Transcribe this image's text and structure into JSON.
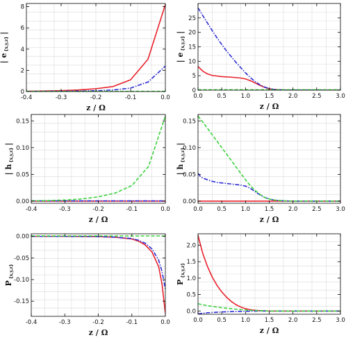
{
  "colors": {
    "e_x": "#e8202a",
    "e_y": "#2a2ad4",
    "e_z": "#39d13a",
    "frame": "#000000",
    "grid": "#d9d9d9",
    "background": "#ffffff"
  },
  "chart_data": [
    {
      "id": "panel-a",
      "type": "line",
      "title": "",
      "xlabel": "z / Ω",
      "ylabel_main": "| e",
      "ylabel_sub": "{x,y,z}",
      "ylabel_end": "|",
      "xlim": [
        -0.4,
        0.0
      ],
      "ylim": [
        0,
        8.3
      ],
      "xticks": [
        -0.4,
        -0.3,
        -0.2,
        -0.1,
        0.0
      ],
      "xtick_labels": [
        "-0.4",
        "-0.3",
        "-0.2",
        "-0.1",
        "0.0"
      ],
      "yticks": [
        0,
        2,
        4,
        6,
        8
      ],
      "ytick_labels": [
        "0",
        "2",
        "4",
        "6",
        "8"
      ],
      "grid": true,
      "series": [
        {
          "style": "solid",
          "color_key": "e_x",
          "x": [
            -0.4,
            -0.35,
            -0.3,
            -0.25,
            -0.2,
            -0.15,
            -0.1,
            -0.05,
            0.0
          ],
          "y": [
            0.03,
            0.05,
            0.09,
            0.15,
            0.27,
            0.48,
            1.11,
            3.05,
            8.2
          ]
        },
        {
          "style": "dashdot",
          "color_key": "e_y",
          "x": [
            -0.4,
            -0.35,
            -0.3,
            -0.25,
            -0.2,
            -0.15,
            -0.1,
            -0.05,
            0.0
          ],
          "y": [
            0.01,
            0.02,
            0.03,
            0.05,
            0.08,
            0.15,
            0.33,
            0.9,
            2.4
          ]
        },
        {
          "style": "dashed",
          "color_key": "e_z",
          "x": [
            -0.4,
            0.0
          ],
          "y": [
            0.02,
            0.02
          ]
        }
      ]
    },
    {
      "id": "panel-b",
      "type": "line",
      "title": "",
      "xlabel": "z / Ω",
      "ylabel_main": "| e",
      "ylabel_sub": "{x,y,z}",
      "ylabel_end": "|",
      "xlim": [
        0.0,
        3.0
      ],
      "ylim": [
        0,
        30
      ],
      "xticks": [
        0.0,
        0.5,
        1.0,
        1.5,
        2.0,
        2.5,
        3.0
      ],
      "xtick_labels": [
        "0.0",
        "0.5",
        "1.0",
        "1.5",
        "2.0",
        "2.5",
        "3.0"
      ],
      "yticks": [
        0,
        5,
        10,
        15,
        20,
        25
      ],
      "ytick_labels": [
        "0",
        "5",
        "10",
        "15",
        "20",
        "25"
      ],
      "grid": true,
      "series": [
        {
          "style": "solid",
          "color_key": "e_x",
          "x": [
            0.0,
            0.1,
            0.2,
            0.3,
            0.5,
            0.7,
            0.9,
            1.0,
            1.1,
            1.2,
            1.3,
            1.4,
            1.5,
            1.6,
            1.8,
            2.0,
            2.5,
            3.0
          ],
          "y": [
            8.2,
            6.6,
            5.6,
            5.1,
            4.7,
            4.5,
            4.2,
            3.9,
            3.3,
            2.5,
            1.7,
            1.0,
            0.5,
            0.25,
            0.06,
            0.02,
            0.0,
            0.0
          ]
        },
        {
          "style": "dashdot",
          "color_key": "e_y",
          "x": [
            0.0,
            0.1,
            0.2,
            0.3,
            0.4,
            0.5,
            0.6,
            0.7,
            0.8,
            0.9,
            1.0,
            1.1,
            1.2,
            1.3,
            1.4,
            1.5,
            1.6,
            1.8,
            2.0,
            2.5,
            3.0
          ],
          "y": [
            28.5,
            25.8,
            23.2,
            20.6,
            18.1,
            15.8,
            13.6,
            11.6,
            9.6,
            7.8,
            6.0,
            4.4,
            3.0,
            1.9,
            1.1,
            0.55,
            0.25,
            0.06,
            0.02,
            0.0,
            0.0
          ]
        },
        {
          "style": "dashed",
          "color_key": "e_z",
          "x": [
            0.0,
            3.0
          ],
          "y": [
            0.15,
            0.15
          ]
        }
      ]
    },
    {
      "id": "panel-c",
      "type": "line",
      "title": "",
      "xlabel": "z / Ω",
      "ylabel_main": "| h",
      "ylabel_sub": "{x,y,z}",
      "ylabel_end": "|",
      "xlim": [
        -0.4,
        0.0
      ],
      "ylim": [
        -0.004,
        0.162
      ],
      "xticks": [
        -0.4,
        -0.3,
        -0.2,
        -0.1,
        0.0
      ],
      "xtick_labels": [
        "-0.4",
        "-0.3",
        "-0.2",
        "-0.1",
        "0.0"
      ],
      "yticks": [
        0.0,
        0.05,
        0.1,
        0.15
      ],
      "ytick_labels": [
        "0.00",
        "0.05",
        "0.10",
        "0.15"
      ],
      "grid": true,
      "series": [
        {
          "style": "solid",
          "color_key": "e_x",
          "x": [
            -0.4,
            0.0
          ],
          "y": [
            0.0,
            0.0
          ]
        },
        {
          "style": "dashdot",
          "color_key": "e_y",
          "x": [
            -0.4,
            0.0
          ],
          "y": [
            0.0005,
            0.0005
          ]
        },
        {
          "style": "dashed",
          "color_key": "e_z",
          "x": [
            -0.4,
            -0.35,
            -0.3,
            -0.25,
            -0.2,
            -0.15,
            -0.1,
            -0.05,
            0.0
          ],
          "y": [
            0.0005,
            0.001,
            0.002,
            0.004,
            0.008,
            0.015,
            0.029,
            0.065,
            0.159
          ]
        }
      ]
    },
    {
      "id": "panel-d",
      "type": "line",
      "title": "",
      "xlabel": "z / Ω",
      "ylabel_main": "| h",
      "ylabel_sub": "{x,y,z}",
      "ylabel_end": "|",
      "xlim": [
        0.0,
        3.0
      ],
      "ylim": [
        -0.004,
        0.162
      ],
      "xticks": [
        0.0,
        0.5,
        1.0,
        1.5,
        2.0,
        2.5,
        3.0
      ],
      "xtick_labels": [
        "0.0",
        "0.5",
        "1.0",
        "1.5",
        "2.0",
        "2.5",
        "3.0"
      ],
      "yticks": [
        0.0,
        0.05,
        0.1,
        0.15
      ],
      "ytick_labels": [
        "0.00",
        "0.05",
        "0.10",
        "0.15"
      ],
      "grid": true,
      "series": [
        {
          "style": "solid",
          "color_key": "e_x",
          "x": [
            0.0,
            3.0
          ],
          "y": [
            0.0,
            0.0
          ]
        },
        {
          "style": "dashdot",
          "color_key": "e_y",
          "x": [
            0.0,
            0.05,
            0.1,
            0.2,
            0.3,
            0.4,
            0.5,
            0.6,
            0.7,
            0.8,
            0.9,
            1.0,
            1.1,
            1.2,
            1.3,
            1.4,
            1.5,
            1.6,
            1.8,
            2.0,
            2.5,
            3.0
          ],
          "y": [
            0.052,
            0.046,
            0.043,
            0.04,
            0.037,
            0.035,
            0.034,
            0.033,
            0.032,
            0.031,
            0.03,
            0.028,
            0.024,
            0.018,
            0.012,
            0.007,
            0.004,
            0.002,
            0.0005,
            0.0,
            0.0,
            0.0
          ]
        },
        {
          "style": "dashed",
          "color_key": "e_z",
          "x": [
            0.0,
            0.1,
            0.2,
            0.3,
            0.4,
            0.5,
            0.6,
            0.7,
            0.8,
            0.9,
            1.0,
            1.1,
            1.2,
            1.3,
            1.4,
            1.5,
            1.6,
            1.8,
            2.0,
            2.5,
            3.0
          ],
          "y": [
            0.159,
            0.148,
            0.136,
            0.124,
            0.112,
            0.1,
            0.088,
            0.076,
            0.064,
            0.052,
            0.04,
            0.029,
            0.02,
            0.013,
            0.007,
            0.004,
            0.002,
            0.0005,
            0.0,
            0.0,
            0.0
          ]
        }
      ]
    },
    {
      "id": "panel-e",
      "type": "line",
      "title": "",
      "xlabel": "z / Ω",
      "ylabel_main": "P",
      "ylabel_sub": "{x,y,z}",
      "ylabel_end": "",
      "xlim": [
        -0.4,
        0.0
      ],
      "ylim": [
        -0.185,
        0.006
      ],
      "xticks": [
        -0.4,
        -0.3,
        -0.2,
        -0.1,
        0.0
      ],
      "xtick_labels": [
        "-0.4",
        "-0.3",
        "-0.2",
        "-0.1",
        "0.0"
      ],
      "yticks": [
        0.0,
        -0.05,
        -0.1,
        -0.15
      ],
      "ytick_labels": [
        "0.00",
        "-0.05",
        "-0.10",
        "-0.15"
      ],
      "grid": true,
      "series": [
        {
          "style": "solid",
          "color_key": "e_x",
          "x": [
            -0.4,
            -0.3,
            -0.2,
            -0.15,
            -0.1,
            -0.08,
            -0.06,
            -0.04,
            -0.02,
            -0.01,
            0.0
          ],
          "y": [
            0.0,
            0.0,
            -0.0005,
            -0.002,
            -0.006,
            -0.011,
            -0.02,
            -0.036,
            -0.07,
            -0.11,
            -0.178
          ]
        },
        {
          "style": "dashdot",
          "color_key": "e_y",
          "x": [
            -0.4,
            -0.3,
            -0.2,
            -0.15,
            -0.1,
            -0.08,
            -0.06,
            -0.04,
            -0.02,
            -0.01,
            0.0
          ],
          "y": [
            0.0,
            0.0,
            -0.0005,
            -0.002,
            -0.005,
            -0.009,
            -0.016,
            -0.029,
            -0.055,
            -0.081,
            -0.122
          ]
        },
        {
          "style": "dashed",
          "color_key": "e_z",
          "x": [
            -0.4,
            0.0
          ],
          "y": [
            0.001,
            0.001
          ]
        }
      ]
    },
    {
      "id": "panel-f",
      "type": "line",
      "title": "",
      "xlabel": "z / Ω",
      "ylabel_main": "P",
      "ylabel_sub": "{x,y,z}",
      "ylabel_end": "",
      "xlim": [
        0.0,
        3.0
      ],
      "ylim": [
        -0.1,
        2.35
      ],
      "xticks": [
        0.0,
        0.5,
        1.0,
        1.5,
        2.0,
        2.5,
        3.0
      ],
      "xtick_labels": [
        "0.0",
        "0.5",
        "1.0",
        "1.5",
        "2.0",
        "2.5",
        "3.0"
      ],
      "yticks": [
        0.0,
        0.5,
        1.0,
        1.5,
        2.0
      ],
      "ytick_labels": [
        "0.0",
        "0.5",
        "1.0",
        "1.5",
        "2.0"
      ],
      "grid": true,
      "series": [
        {
          "style": "solid",
          "color_key": "e_x",
          "x": [
            0.0,
            0.1,
            0.2,
            0.3,
            0.4,
            0.5,
            0.6,
            0.7,
            0.8,
            0.9,
            1.0,
            1.1,
            1.2,
            1.3,
            1.5,
            1.8,
            2.0,
            3.0
          ],
          "y": [
            2.3,
            1.75,
            1.35,
            1.03,
            0.78,
            0.58,
            0.42,
            0.29,
            0.19,
            0.12,
            0.07,
            0.04,
            0.02,
            0.01,
            0.0,
            0.0,
            0.0,
            0.0
          ]
        },
        {
          "style": "dashdot",
          "color_key": "e_y",
          "x": [
            0.0,
            0.1,
            0.2,
            0.3,
            0.5,
            0.7,
            0.9,
            1.1,
            1.3,
            1.5,
            2.0,
            3.0
          ],
          "y": [
            -0.09,
            -0.07,
            -0.055,
            -0.045,
            -0.03,
            -0.02,
            -0.012,
            -0.006,
            -0.002,
            0.0,
            0.0,
            0.0
          ]
        },
        {
          "style": "dashed",
          "color_key": "e_z",
          "x": [
            0.0,
            0.1,
            0.2,
            0.3,
            0.5,
            0.7,
            0.9,
            1.1,
            1.3,
            1.5,
            2.0,
            3.0
          ],
          "y": [
            0.22,
            0.19,
            0.16,
            0.14,
            0.1,
            0.07,
            0.04,
            0.02,
            0.01,
            0.0,
            0.0,
            0.0
          ]
        }
      ]
    }
  ]
}
